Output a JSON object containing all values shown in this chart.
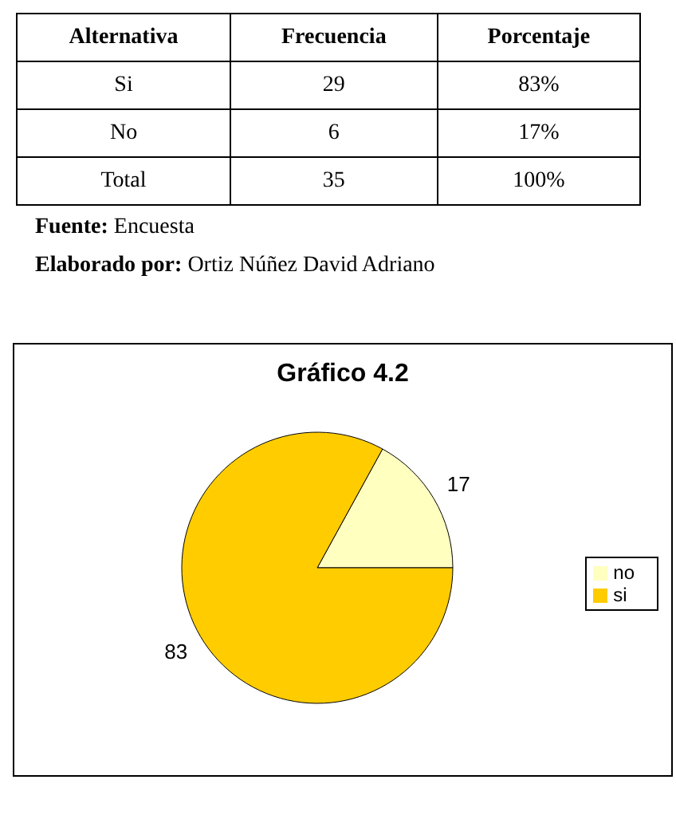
{
  "chart_data": [
    {
      "type": "other",
      "annotations": [
        "Alternativa",
        "Frecuencia",
        "Porcentaje",
        "Si",
        "29",
        "83%",
        "No",
        "6",
        "17%",
        "Total",
        "35",
        "100%",
        "Fuente: Encuesta",
        "Elaborado por: Ortiz Núñez David  Adriano"
      ]
    },
    {
      "type": "pie",
      "title": "Gráfico 4.2",
      "categories": [
        "no",
        "si"
      ],
      "values": [
        17,
        83
      ],
      "colors": [
        "#ffffc0",
        "#ffcc00"
      ],
      "data_labels": true,
      "legend": "right"
    }
  ]
}
